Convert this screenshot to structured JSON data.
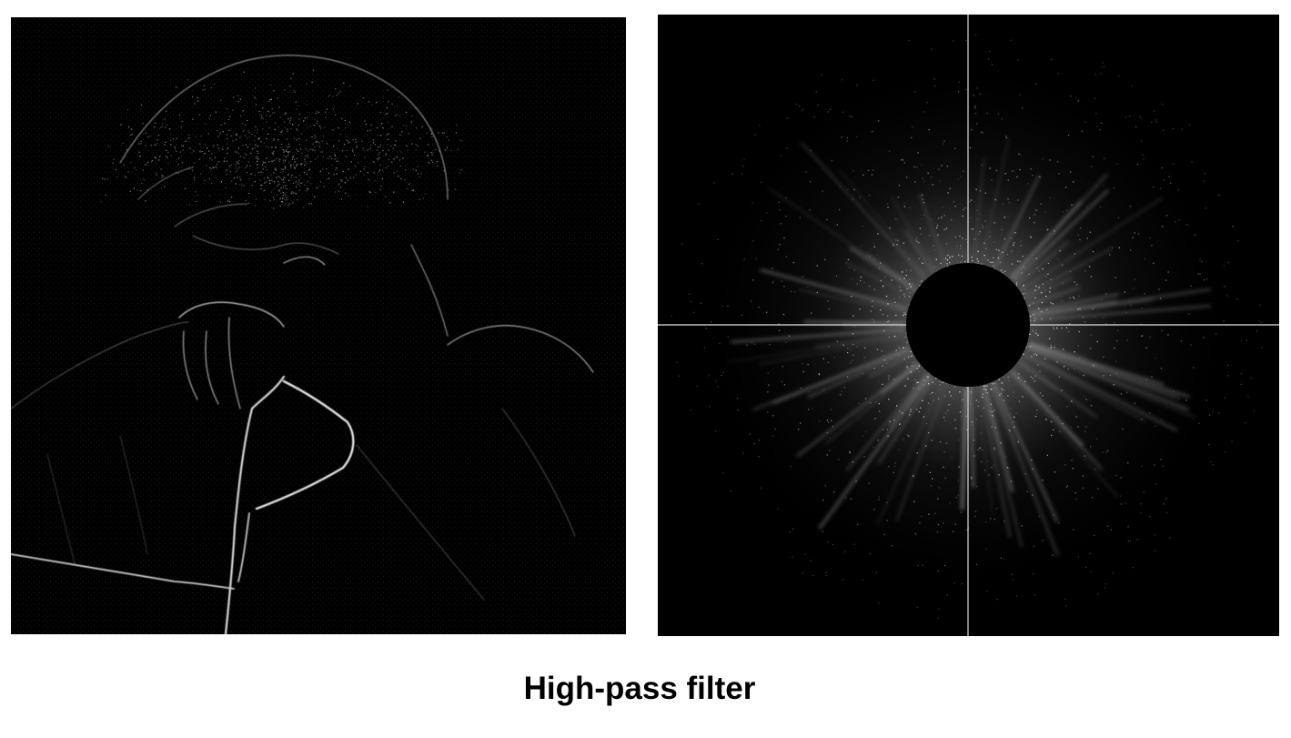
{
  "caption": "High-pass filter",
  "panels": {
    "left": {
      "image": "high-pass filtered edge image of a person"
    },
    "right": {
      "image": "frequency spectrum with low frequencies removed"
    }
  },
  "colors": {
    "background": "#ffffff",
    "panel": "#000000",
    "edge": "#d8d8d8",
    "text": "#000000"
  }
}
